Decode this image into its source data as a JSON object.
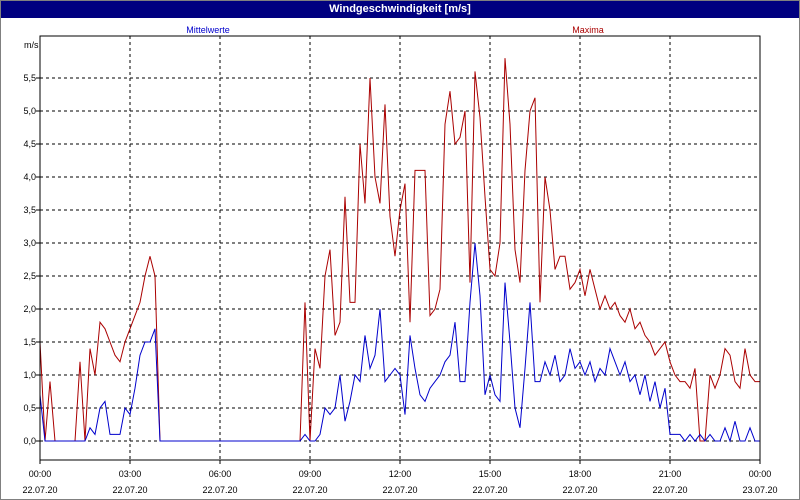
{
  "window": {
    "title": "Windgeschwindigkeit [m/s]"
  },
  "chart_data": {
    "type": "line",
    "title": "Windgeschwindigkeit [m/s]",
    "ylabel": "m/s",
    "xlabel": "",
    "ylim": [
      0,
      6.0
    ],
    "xlim": [
      "2020-07-22 00:00",
      "2020-07-23 00:00"
    ],
    "grid": true,
    "y_ticks": [
      "0,0",
      "0,5",
      "1,0",
      "1,5",
      "2,0",
      "2,5",
      "3,0",
      "3,5",
      "4,0",
      "4,5",
      "5,0",
      "5,5"
    ],
    "x_ticks": [
      {
        "time": "00:00",
        "date": "22.07.20"
      },
      {
        "time": "03:00",
        "date": "22.07.20"
      },
      {
        "time": "06:00",
        "date": "22.07.20"
      },
      {
        "time": "09:00",
        "date": "22.07.20"
      },
      {
        "time": "12:00",
        "date": "22.07.20"
      },
      {
        "time": "15:00",
        "date": "22.07.20"
      },
      {
        "time": "18:00",
        "date": "22.07.20"
      },
      {
        "time": "21:00",
        "date": "22.07.20"
      },
      {
        "time": "00:00",
        "date": "23.07.20"
      }
    ],
    "series": [
      {
        "name": "Mittelwerte",
        "color": "#0000cc",
        "points": [
          [
            "00:00",
            0.7
          ],
          [
            "00:10",
            0.0
          ],
          [
            "00:20",
            0.0
          ],
          [
            "00:30",
            0.0
          ],
          [
            "00:40",
            0.0
          ],
          [
            "00:50",
            0.0
          ],
          [
            "01:00",
            0.0
          ],
          [
            "01:10",
            0.0
          ],
          [
            "01:20",
            0.0
          ],
          [
            "01:30",
            0.0
          ],
          [
            "01:40",
            0.2
          ],
          [
            "01:50",
            0.1
          ],
          [
            "02:00",
            0.5
          ],
          [
            "02:10",
            0.6
          ],
          [
            "02:20",
            0.1
          ],
          [
            "02:30",
            0.1
          ],
          [
            "02:40",
            0.1
          ],
          [
            "02:50",
            0.5
          ],
          [
            "03:00",
            0.4
          ],
          [
            "03:10",
            0.8
          ],
          [
            "03:20",
            1.3
          ],
          [
            "03:30",
            1.5
          ],
          [
            "03:40",
            1.5
          ],
          [
            "03:50",
            1.7
          ],
          [
            "04:00",
            0.0
          ],
          [
            "04:10",
            0.0
          ],
          [
            "05:00",
            0.0
          ],
          [
            "06:00",
            0.0
          ],
          [
            "07:00",
            0.0
          ],
          [
            "08:00",
            0.0
          ],
          [
            "08:40",
            0.0
          ],
          [
            "08:50",
            0.1
          ],
          [
            "09:00",
            0.0
          ],
          [
            "09:10",
            0.0
          ],
          [
            "09:20",
            0.1
          ],
          [
            "09:30",
            0.5
          ],
          [
            "09:40",
            0.4
          ],
          [
            "09:50",
            0.5
          ],
          [
            "10:00",
            1.0
          ],
          [
            "10:10",
            0.3
          ],
          [
            "10:20",
            0.6
          ],
          [
            "10:30",
            1.0
          ],
          [
            "10:40",
            0.9
          ],
          [
            "10:50",
            1.6
          ],
          [
            "11:00",
            1.1
          ],
          [
            "11:10",
            1.3
          ],
          [
            "11:20",
            2.0
          ],
          [
            "11:30",
            0.9
          ],
          [
            "11:40",
            1.0
          ],
          [
            "11:50",
            1.1
          ],
          [
            "12:00",
            1.0
          ],
          [
            "12:10",
            0.4
          ],
          [
            "12:20",
            1.6
          ],
          [
            "12:30",
            1.1
          ],
          [
            "12:40",
            0.7
          ],
          [
            "12:50",
            0.6
          ],
          [
            "13:00",
            0.8
          ],
          [
            "13:10",
            0.9
          ],
          [
            "13:20",
            1.0
          ],
          [
            "13:30",
            1.2
          ],
          [
            "13:40",
            1.3
          ],
          [
            "13:50",
            1.8
          ],
          [
            "14:00",
            0.9
          ],
          [
            "14:10",
            0.9
          ],
          [
            "14:20",
            2.1
          ],
          [
            "14:30",
            3.0
          ],
          [
            "14:40",
            2.2
          ],
          [
            "14:50",
            0.7
          ],
          [
            "15:00",
            1.0
          ],
          [
            "15:10",
            0.7
          ],
          [
            "15:20",
            0.6
          ],
          [
            "15:30",
            2.4
          ],
          [
            "15:40",
            1.5
          ],
          [
            "15:50",
            0.5
          ],
          [
            "16:00",
            0.2
          ],
          [
            "16:10",
            1.1
          ],
          [
            "16:20",
            2.1
          ],
          [
            "16:30",
            0.9
          ],
          [
            "16:40",
            0.9
          ],
          [
            "16:50",
            1.2
          ],
          [
            "17:00",
            1.0
          ],
          [
            "17:10",
            1.3
          ],
          [
            "17:20",
            0.9
          ],
          [
            "17:30",
            1.0
          ],
          [
            "17:40",
            1.4
          ],
          [
            "17:50",
            1.1
          ],
          [
            "18:00",
            1.2
          ],
          [
            "18:10",
            1.0
          ],
          [
            "18:20",
            1.2
          ],
          [
            "18:30",
            0.9
          ],
          [
            "18:40",
            1.1
          ],
          [
            "18:50",
            1.0
          ],
          [
            "19:00",
            1.4
          ],
          [
            "19:10",
            1.2
          ],
          [
            "19:20",
            1.0
          ],
          [
            "19:30",
            1.2
          ],
          [
            "19:40",
            0.9
          ],
          [
            "19:50",
            1.0
          ],
          [
            "20:00",
            0.7
          ],
          [
            "20:10",
            1.0
          ],
          [
            "20:20",
            0.6
          ],
          [
            "20:30",
            0.9
          ],
          [
            "20:40",
            0.5
          ],
          [
            "20:50",
            0.8
          ],
          [
            "21:00",
            0.1
          ],
          [
            "21:10",
            0.1
          ],
          [
            "21:20",
            0.1
          ],
          [
            "21:30",
            0.0
          ],
          [
            "21:40",
            0.1
          ],
          [
            "21:50",
            0.0
          ],
          [
            "22:00",
            0.1
          ],
          [
            "22:10",
            0.0
          ],
          [
            "22:20",
            0.1
          ],
          [
            "22:30",
            0.0
          ],
          [
            "22:40",
            0.0
          ],
          [
            "22:50",
            0.2
          ],
          [
            "23:00",
            0.0
          ],
          [
            "23:10",
            0.3
          ],
          [
            "23:20",
            0.0
          ],
          [
            "23:30",
            0.0
          ],
          [
            "23:40",
            0.2
          ],
          [
            "23:50",
            0.0
          ],
          [
            "23:59",
            0.0
          ]
        ]
      },
      {
        "name": "Maxima",
        "color": "#aa0000",
        "points": [
          [
            "00:00",
            1.5
          ],
          [
            "00:10",
            0.0
          ],
          [
            "00:20",
            0.9
          ],
          [
            "00:30",
            0.0
          ],
          [
            "00:40",
            0.0
          ],
          [
            "00:50",
            0.0
          ],
          [
            "01:00",
            0.0
          ],
          [
            "01:10",
            0.0
          ],
          [
            "01:20",
            1.2
          ],
          [
            "01:30",
            0.0
          ],
          [
            "01:40",
            1.4
          ],
          [
            "01:50",
            1.0
          ],
          [
            "02:00",
            1.8
          ],
          [
            "02:10",
            1.7
          ],
          [
            "02:20",
            1.5
          ],
          [
            "02:30",
            1.3
          ],
          [
            "02:40",
            1.2
          ],
          [
            "02:50",
            1.5
          ],
          [
            "03:00",
            1.7
          ],
          [
            "03:10",
            1.9
          ],
          [
            "03:20",
            2.1
          ],
          [
            "03:30",
            2.5
          ],
          [
            "03:40",
            2.8
          ],
          [
            "03:50",
            2.5
          ],
          [
            "04:00",
            0.0
          ],
          [
            "04:10",
            0.0
          ],
          [
            "05:00",
            0.0
          ],
          [
            "06:00",
            0.0
          ],
          [
            "07:00",
            0.0
          ],
          [
            "08:00",
            0.0
          ],
          [
            "08:40",
            0.0
          ],
          [
            "08:50",
            2.1
          ],
          [
            "09:00",
            0.0
          ],
          [
            "09:10",
            1.4
          ],
          [
            "09:20",
            1.1
          ],
          [
            "09:30",
            2.5
          ],
          [
            "09:40",
            2.9
          ],
          [
            "09:50",
            1.6
          ],
          [
            "10:00",
            1.8
          ],
          [
            "10:10",
            3.7
          ],
          [
            "10:20",
            2.1
          ],
          [
            "10:30",
            2.1
          ],
          [
            "10:40",
            4.5
          ],
          [
            "10:50",
            3.6
          ],
          [
            "11:00",
            5.5
          ],
          [
            "11:10",
            4.0
          ],
          [
            "11:20",
            3.6
          ],
          [
            "11:30",
            5.1
          ],
          [
            "11:40",
            3.4
          ],
          [
            "11:50",
            2.8
          ],
          [
            "12:00",
            3.5
          ],
          [
            "12:10",
            3.9
          ],
          [
            "12:20",
            1.8
          ],
          [
            "12:30",
            4.1
          ],
          [
            "12:40",
            4.1
          ],
          [
            "12:50",
            4.1
          ],
          [
            "13:00",
            1.9
          ],
          [
            "13:10",
            2.0
          ],
          [
            "13:20",
            2.3
          ],
          [
            "13:30",
            4.8
          ],
          [
            "13:40",
            5.3
          ],
          [
            "13:50",
            4.5
          ],
          [
            "14:00",
            4.6
          ],
          [
            "14:10",
            5.0
          ],
          [
            "14:20",
            2.4
          ],
          [
            "14:30",
            5.6
          ],
          [
            "14:40",
            4.9
          ],
          [
            "14:50",
            3.7
          ],
          [
            "15:00",
            2.6
          ],
          [
            "15:10",
            2.5
          ],
          [
            "15:20",
            3.0
          ],
          [
            "15:30",
            5.8
          ],
          [
            "15:40",
            4.8
          ],
          [
            "15:50",
            2.9
          ],
          [
            "16:00",
            2.4
          ],
          [
            "16:10",
            4.1
          ],
          [
            "16:20",
            5.0
          ],
          [
            "16:30",
            5.2
          ],
          [
            "16:40",
            2.1
          ],
          [
            "16:50",
            4.0
          ],
          [
            "17:00",
            3.5
          ],
          [
            "17:10",
            2.6
          ],
          [
            "17:20",
            2.8
          ],
          [
            "17:30",
            2.8
          ],
          [
            "17:40",
            2.3
          ],
          [
            "17:50",
            2.4
          ],
          [
            "18:00",
            2.6
          ],
          [
            "18:10",
            2.2
          ],
          [
            "18:20",
            2.6
          ],
          [
            "18:30",
            2.3
          ],
          [
            "18:40",
            2.0
          ],
          [
            "18:50",
            2.2
          ],
          [
            "19:00",
            2.0
          ],
          [
            "19:10",
            2.1
          ],
          [
            "19:20",
            1.9
          ],
          [
            "19:30",
            1.8
          ],
          [
            "19:40",
            2.0
          ],
          [
            "19:50",
            1.7
          ],
          [
            "20:00",
            1.8
          ],
          [
            "20:10",
            1.6
          ],
          [
            "20:20",
            1.5
          ],
          [
            "20:30",
            1.3
          ],
          [
            "20:40",
            1.4
          ],
          [
            "20:50",
            1.5
          ],
          [
            "21:00",
            1.2
          ],
          [
            "21:10",
            1.0
          ],
          [
            "21:20",
            0.9
          ],
          [
            "21:30",
            0.9
          ],
          [
            "21:40",
            0.8
          ],
          [
            "21:50",
            1.1
          ],
          [
            "22:00",
            0.0
          ],
          [
            "22:10",
            0.0
          ],
          [
            "22:20",
            1.0
          ],
          [
            "22:30",
            0.8
          ],
          [
            "22:40",
            1.0
          ],
          [
            "22:50",
            1.4
          ],
          [
            "23:00",
            1.3
          ],
          [
            "23:10",
            0.9
          ],
          [
            "23:20",
            0.8
          ],
          [
            "23:30",
            1.4
          ],
          [
            "23:40",
            1.0
          ],
          [
            "23:50",
            0.9
          ],
          [
            "23:59",
            0.9
          ]
        ]
      }
    ]
  }
}
